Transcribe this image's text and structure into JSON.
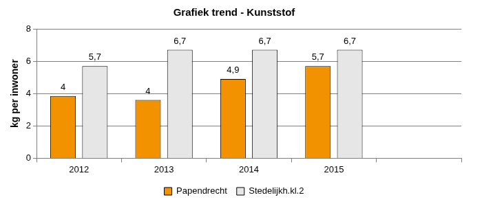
{
  "chart_data": {
    "type": "bar",
    "title": "Grafiek trend - Kunststof",
    "y_label": "kg per inwoner",
    "categories": [
      "2012",
      "2013",
      "2014",
      "2015",
      null
    ],
    "series": [
      {
        "name": "Papendrecht",
        "color": "#f39200",
        "values": [
          3.85,
          3.6,
          4.9,
          5.7,
          null
        ],
        "value_labels": [
          "4",
          "4",
          "4,9",
          "5,7",
          null
        ]
      },
      {
        "name": "Stedelijkh.kl.2",
        "color": "#e6e6e6",
        "values": [
          5.7,
          6.7,
          6.7,
          6.7,
          null
        ],
        "value_labels": [
          "5,7",
          "6,7",
          "6,7",
          "6,7",
          null
        ]
      }
    ],
    "ylim": [
      0,
      8
    ],
    "yticks": [
      0,
      2,
      4,
      6,
      8
    ],
    "grid": true,
    "legend": "bottom",
    "data_labels": true
  }
}
